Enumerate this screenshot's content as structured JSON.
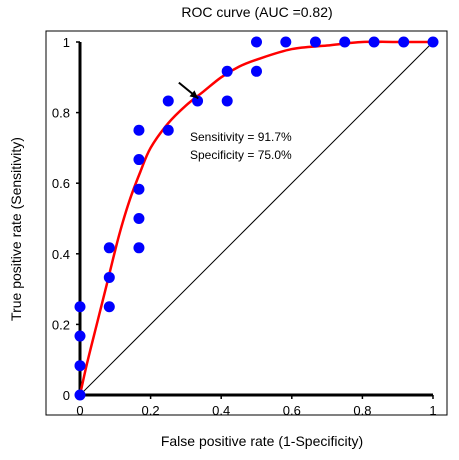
{
  "chart_data": {
    "type": "scatter",
    "title": "ROC curve (AUC =0.82)",
    "xlabel": "False positive rate (1-Specificity)",
    "ylabel": "True positive rate (Sensitivity)",
    "xlim": [
      0,
      1
    ],
    "ylim": [
      0,
      1
    ],
    "x_ticks": [
      {
        "value": 0,
        "label": "0"
      },
      {
        "value": 0.2,
        "label": "0.2"
      },
      {
        "value": 0.4,
        "label": "0.4"
      },
      {
        "value": 0.6,
        "label": "0.6"
      },
      {
        "value": 0.8,
        "label": "0.8"
      },
      {
        "value": 1,
        "label": "1"
      }
    ],
    "y_ticks": [
      {
        "value": 0,
        "label": "0"
      },
      {
        "value": 0.2,
        "label": "0.2"
      },
      {
        "value": 0.4,
        "label": "0.4"
      },
      {
        "value": 0.6,
        "label": "0.6"
      },
      {
        "value": 0.8,
        "label": "0.8"
      },
      {
        "value": 1,
        "label": "1"
      }
    ],
    "grid": false,
    "points": {
      "color": "#0000ff",
      "x": [
        0,
        0,
        0,
        0,
        0.083,
        0.083,
        0.083,
        0.167,
        0.167,
        0.167,
        0.167,
        0.167,
        0.25,
        0.25,
        0.333,
        0.417,
        0.417,
        0.5,
        0.5,
        0.583,
        0.667,
        0.75,
        0.833,
        0.917,
        1
      ],
      "y": [
        0,
        0.083,
        0.167,
        0.25,
        0.25,
        0.333,
        0.417,
        0.417,
        0.5,
        0.583,
        0.667,
        0.75,
        0.75,
        0.833,
        0.833,
        0.833,
        0.917,
        0.917,
        1,
        1,
        1,
        1,
        1,
        1,
        1
      ]
    },
    "fitted_curve": {
      "color": "#ff0000",
      "x": [
        0,
        0.02,
        0.05,
        0.08,
        0.11,
        0.14,
        0.17,
        0.2,
        0.25,
        0.3,
        0.35,
        0.4,
        0.45,
        0.5,
        0.6,
        0.7,
        0.8,
        0.9,
        1
      ],
      "y": [
        0,
        0.09,
        0.21,
        0.33,
        0.45,
        0.55,
        0.63,
        0.7,
        0.77,
        0.82,
        0.86,
        0.9,
        0.93,
        0.95,
        0.98,
        0.99,
        1,
        1,
        1
      ]
    },
    "reference_line": {
      "color": "#000000",
      "x": [
        0,
        1
      ],
      "y": [
        0,
        1
      ]
    },
    "annotation": {
      "lines": [
        "Sensitivity = 91.7%",
        "Specificity = 75.0%"
      ],
      "arrow_from": [
        0.28,
        0.885
      ],
      "arrow_to": [
        0.335,
        0.84
      ]
    }
  }
}
